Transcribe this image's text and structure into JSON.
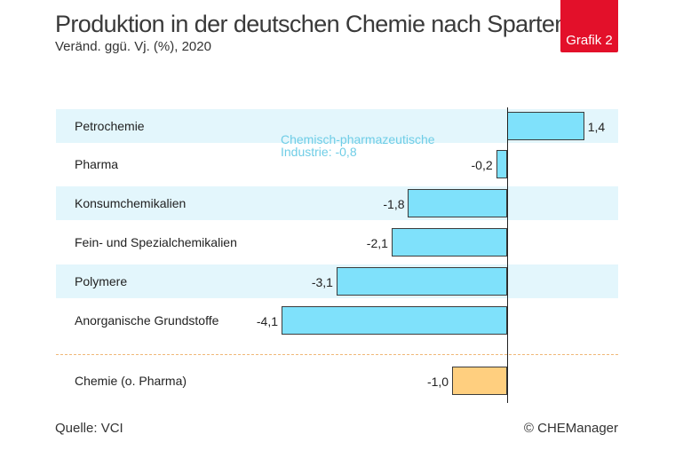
{
  "header": {
    "title": "Produktion in der deutschen Chemie nach Sparten",
    "subtitle": "Veränd. ggü. Vj. (%), 2020",
    "badge": "Grafik 2"
  },
  "chart_data": {
    "type": "bar",
    "orientation": "horizontal",
    "title": "Produktion in der deutschen Chemie nach Sparten",
    "subtitle": "Veränd. ggü. Vj. (%), 2020",
    "categories": [
      "Petrochemie",
      "Pharma",
      "Konsumchemikalien",
      "Fein- und Spezialchemikalien",
      "Polymere",
      "Anorganische Grundstoffe",
      "Chemie (o. Pharma)"
    ],
    "values": [
      1.4,
      -0.2,
      -1.8,
      -2.1,
      -3.1,
      -4.1,
      -1.0
    ],
    "value_labels": [
      "1,4",
      "-0,2",
      "-1,8",
      "-2,1",
      "-3,1",
      "-4,1",
      "-1,0"
    ],
    "bar_colors": [
      "#7fe1fb",
      "#7fe1fb",
      "#7fe1fb",
      "#7fe1fb",
      "#7fe1fb",
      "#7fe1fb",
      "#ffcf7f"
    ],
    "xlim": [
      -4.1,
      1.4
    ],
    "annotation": "Chemisch-pharmazeutische\nIndustrie: -0,8",
    "xlabel": "",
    "ylabel": "",
    "grid": false,
    "legend": "none"
  },
  "footer": {
    "source": "Quelle: VCI",
    "copyright": "© CHEManager"
  },
  "colors": {
    "accent": "#e3102a",
    "bar_primary": "#7fe1fb",
    "bar_total": "#ffcf7f",
    "band": "#e3f6fc",
    "annotation": "#6fcde6"
  }
}
